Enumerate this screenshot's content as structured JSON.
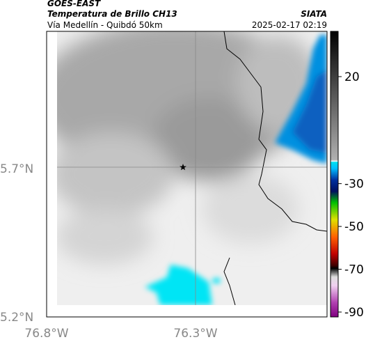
{
  "header": {
    "source": "GOES-EAST",
    "title": "Temperatura de Brillo CH13",
    "subtitle": "Vía Medellín - Quibdó 50km",
    "brand": "SIATA",
    "timestamp": "2025-02-17 02:19"
  },
  "map": {
    "lat_labels": [
      "5.7°N",
      "5.2°N"
    ],
    "lon_labels": [
      "76.8°W",
      "76.3°W"
    ]
  },
  "colorbar": {
    "ticks": [
      20,
      -30,
      -50,
      -70,
      -90
    ]
  }
}
